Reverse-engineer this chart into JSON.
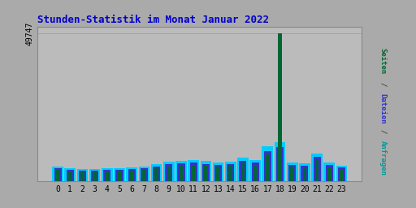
{
  "title": "Stunden-Statistik im Monat Januar 2022",
  "title_color": "#0000cc",
  "background_color": "#aaaaaa",
  "plot_bg_color": "#bbbbbb",
  "hours": [
    0,
    1,
    2,
    3,
    4,
    5,
    6,
    7,
    8,
    9,
    10,
    11,
    12,
    13,
    14,
    15,
    16,
    17,
    18,
    19,
    20,
    21,
    22,
    23
  ],
  "ytick_label": "49747",
  "seiten": [
    3800,
    3300,
    3100,
    3200,
    3300,
    3400,
    3600,
    3900,
    4400,
    5000,
    5300,
    5500,
    5200,
    4900,
    5100,
    6200,
    5500,
    9000,
    49747,
    4800,
    4600,
    7200,
    4700,
    4100
  ],
  "dateien": [
    4200,
    3700,
    3500,
    3600,
    3700,
    3800,
    4000,
    4400,
    5000,
    5600,
    5900,
    6100,
    5800,
    5500,
    5700,
    6900,
    6200,
    10200,
    11500,
    5400,
    5200,
    8100,
    5300,
    4600
  ],
  "anfragen": [
    4800,
    4200,
    4000,
    4100,
    4200,
    4300,
    4600,
    5000,
    5700,
    6400,
    6700,
    7000,
    6700,
    6300,
    6500,
    7900,
    7100,
    11600,
    13200,
    6200,
    5900,
    9200,
    6100,
    5200
  ],
  "seiten_color": "#006633",
  "dateien_color": "#3333cc",
  "anfragen_color": "#00ccff",
  "bar_width": 0.3,
  "ylim_max": 52000,
  "grid_color": "#999999",
  "n_gridlines": 6
}
